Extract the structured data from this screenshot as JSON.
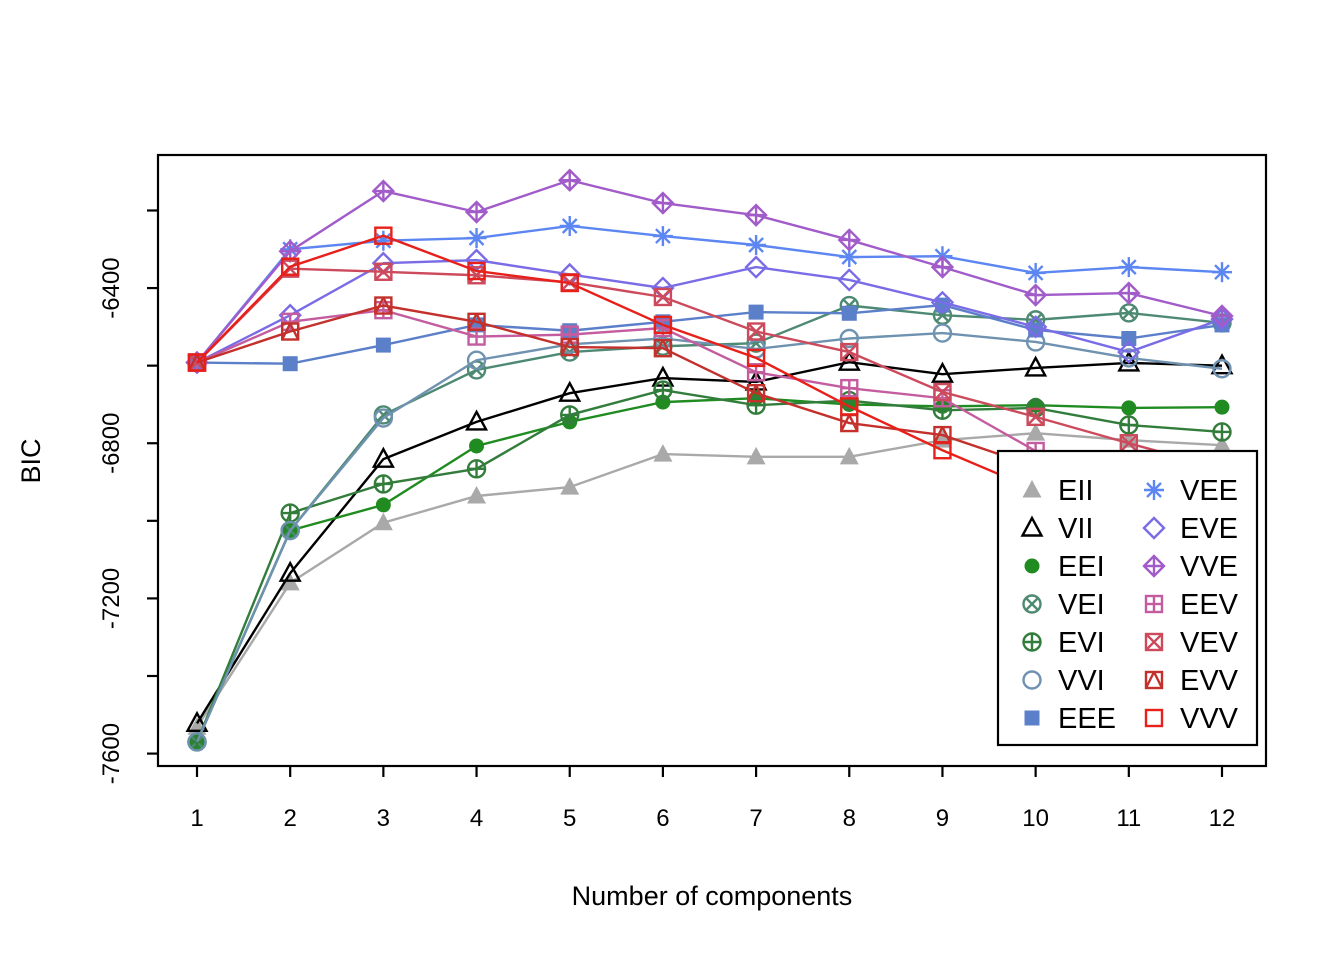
{
  "chart_data": {
    "type": "line",
    "title": "",
    "xlabel": "Number of components",
    "ylabel": "BIC",
    "x": [
      1,
      2,
      3,
      4,
      5,
      6,
      7,
      8,
      9,
      10,
      11,
      12
    ],
    "xtick_labels": [
      "1",
      "2",
      "3",
      "4",
      "5",
      "6",
      "7",
      "8",
      "9",
      "10",
      "11",
      "12"
    ],
    "ylim": [
      -7632,
      -6057
    ],
    "yticks": [
      -6200,
      -6400,
      -6600,
      -6800,
      -7000,
      -7200,
      -7400,
      -7600
    ],
    "ytick_labeled": [
      -6400,
      -6800,
      -7200,
      -7600
    ],
    "grid": "off",
    "legend_position": "bottom-right",
    "series": [
      {
        "name": "EII",
        "symbol": "triangle-filled",
        "color": "#A9A9A9",
        "values": [
          -7532,
          -7160,
          -7005,
          -6936,
          -6913,
          -6828,
          -6835,
          -6835,
          -6792,
          -6774,
          -6792,
          -6805
        ]
      },
      {
        "name": "VII",
        "symbol": "triangle-open",
        "color": "#000000",
        "values": [
          -7522,
          -7135,
          -6841,
          -6745,
          -6671,
          -6632,
          -6642,
          -6591,
          -6622,
          -6606,
          -6593,
          -6600
        ]
      },
      {
        "name": "EEI",
        "symbol": "circle-filled",
        "color": "#208B20",
        "values": [
          -7570,
          -7025,
          -6959,
          -6807,
          -6745,
          -6694,
          -6684,
          -6700,
          -6705,
          -6702,
          -6709,
          -6707
        ]
      },
      {
        "name": "VEI",
        "symbol": "circle-x",
        "color": "#4E8A73",
        "values": [
          -7570,
          -7025,
          -6727,
          -6611,
          -6565,
          -6550,
          -6542,
          -6445,
          -6470,
          -6482,
          -6464,
          -6490
        ]
      },
      {
        "name": "EVI",
        "symbol": "circle-plus",
        "color": "#337D3C",
        "values": [
          -7570,
          -6980,
          -6905,
          -6866,
          -6727,
          -6663,
          -6702,
          -6690,
          -6715,
          -6709,
          -6753,
          -6771
        ]
      },
      {
        "name": "VVI",
        "symbol": "circle-open",
        "color": "#6F92B0",
        "values": [
          -7570,
          -7025,
          -6735,
          -6586,
          -6545,
          -6530,
          -6557,
          -6530,
          -6516,
          -6539,
          -6580,
          -6608
        ]
      },
      {
        "name": "EEE",
        "symbol": "square-filled",
        "color": "#5C7FC9",
        "values": [
          -6592,
          -6595,
          -6547,
          -6495,
          -6510,
          -6487,
          -6462,
          -6465,
          -6444,
          -6508,
          -6530,
          -6495
        ]
      },
      {
        "name": "VEE",
        "symbol": "asterisk",
        "color": "#5C86F2",
        "values": [
          -6592,
          -6300,
          -6278,
          -6271,
          -6240,
          -6266,
          -6289,
          -6320,
          -6318,
          -6361,
          -6346,
          -6359
        ]
      },
      {
        "name": "EVE",
        "symbol": "diamond-open",
        "color": "#7A6CE6",
        "values": [
          -6592,
          -6470,
          -6336,
          -6328,
          -6365,
          -6400,
          -6346,
          -6379,
          -6437,
          -6500,
          -6565,
          -6480
        ]
      },
      {
        "name": "VVE",
        "symbol": "diamond-plus",
        "color": "#A15CC9",
        "values": [
          -6592,
          -6305,
          -6150,
          -6204,
          -6122,
          -6181,
          -6212,
          -6276,
          -6346,
          -6418,
          -6413,
          -6472
        ]
      },
      {
        "name": "EEV",
        "symbol": "square-plus",
        "color": "#C45D9F",
        "values": [
          -6592,
          -6487,
          -6457,
          -6525,
          -6520,
          -6503,
          -6617,
          -6658,
          -6684,
          -6820,
          -6900,
          -6970
        ]
      },
      {
        "name": "VEV",
        "symbol": "square-x",
        "color": "#CC4A5C",
        "values": [
          -6592,
          -6350,
          -6358,
          -6367,
          -6385,
          -6423,
          -6512,
          -6565,
          -6668,
          -6732,
          -6800,
          -6865
        ]
      },
      {
        "name": "EVV",
        "symbol": "square-triangle",
        "color": "#C4302B",
        "values": [
          -6592,
          -6512,
          -6445,
          -6487,
          -6552,
          -6555,
          -6671,
          -6748,
          -6779,
          -6860,
          -6930,
          -7000
        ]
      },
      {
        "name": "VVV",
        "symbol": "square-open",
        "color": "#E8201A",
        "values": [
          -6592,
          -6345,
          -6265,
          -6356,
          -6387,
          -6495,
          -6580,
          -6705,
          -6818,
          -6920,
          -7010,
          -7100
        ]
      }
    ]
  },
  "legend": {
    "columns": [
      [
        "EII",
        "VII",
        "EEI",
        "VEI",
        "EVI",
        "VVI",
        "EEE"
      ],
      [
        "VEE",
        "EVE",
        "VVE",
        "EEV",
        "VEV",
        "EVV",
        "VVV"
      ]
    ]
  }
}
